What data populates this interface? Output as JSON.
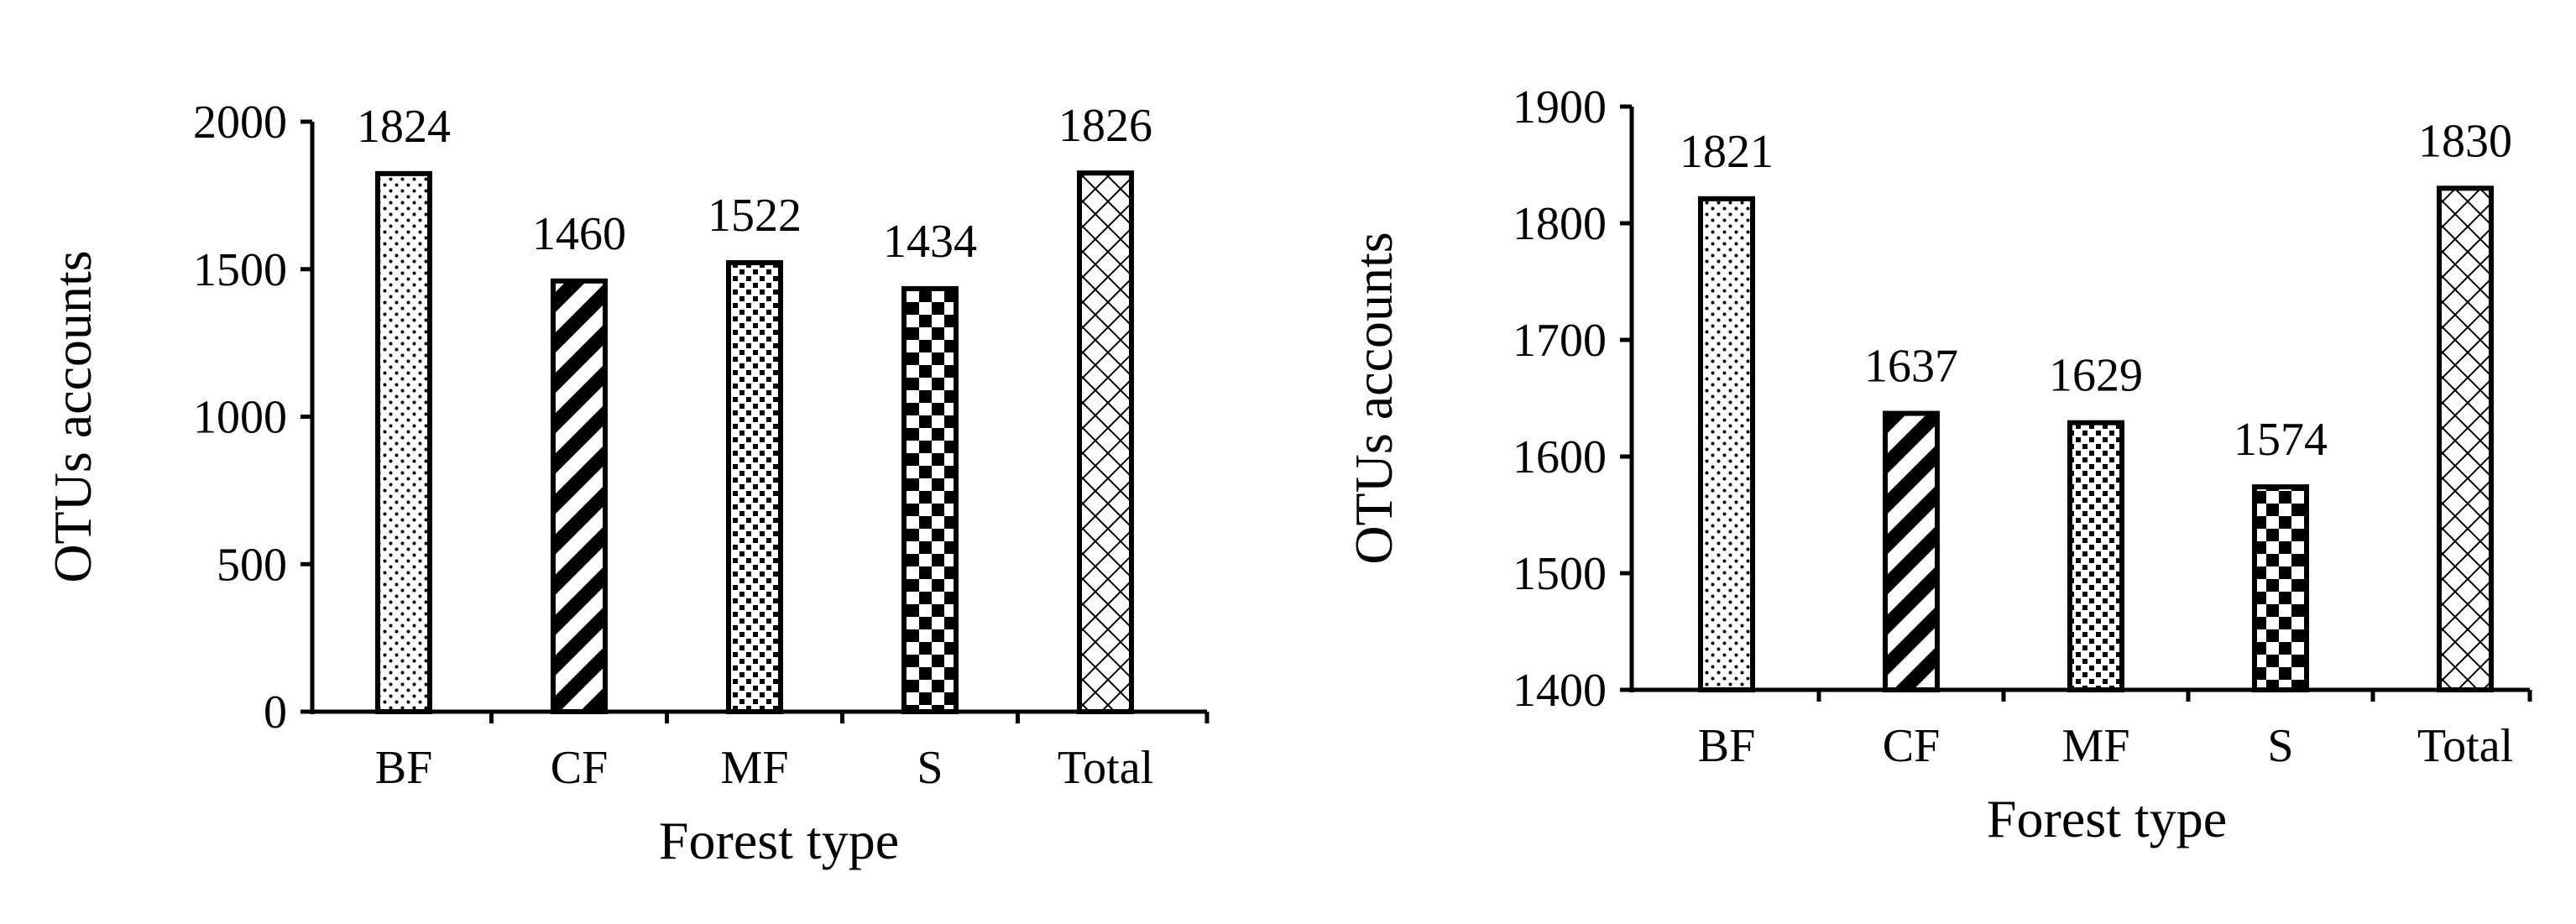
{
  "chart_data": [
    {
      "type": "bar",
      "categories": [
        "BF",
        "CF",
        "MF",
        "S",
        "Total"
      ],
      "values": [
        1824,
        1460,
        1522,
        1434,
        1826
      ],
      "data_labels": [
        "1824",
        "1460",
        "1522",
        "1434",
        "1826"
      ],
      "ylim": [
        0,
        2000
      ],
      "yticks": [
        0,
        500,
        1000,
        1500,
        2000
      ],
      "xlabel": "Forest type",
      "ylabel": "OTUs accounts",
      "bar_patterns": [
        "dots",
        "diagonal-stripes",
        "dense-dots",
        "checkerboard",
        "cross-hatch"
      ],
      "grid": false,
      "legend": "none"
    },
    {
      "type": "bar",
      "categories": [
        "BF",
        "CF",
        "MF",
        "S",
        "Total"
      ],
      "values": [
        1821,
        1637,
        1629,
        1574,
        1830
      ],
      "data_labels": [
        "1821",
        "1637",
        "1629",
        "1574",
        "1830"
      ],
      "ylim": [
        1400,
        1900
      ],
      "yticks": [
        1400,
        1500,
        1600,
        1700,
        1800,
        1900
      ],
      "xlabel": "Forest type",
      "ylabel": "OTUs accounts",
      "bar_patterns": [
        "dots",
        "diagonal-stripes",
        "dense-dots",
        "checkerboard",
        "cross-hatch"
      ],
      "grid": false,
      "legend": "none"
    }
  ]
}
